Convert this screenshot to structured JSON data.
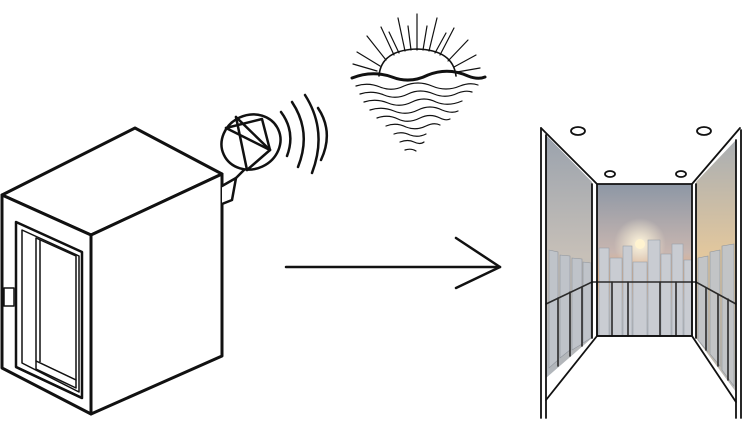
{
  "diagram": {
    "nodes": [
      {
        "id": "booth",
        "kind": "enclosure with glass door",
        "icon": "booth-icon"
      },
      {
        "id": "dish",
        "kind": "satellite dish emitting signal",
        "icon": "satellite-dish-icon"
      },
      {
        "id": "sunrise",
        "kind": "sun rising over water",
        "icon": "sunrise-icon"
      },
      {
        "id": "view",
        "kind": "glass-walled room overlooking city at sunset",
        "icon": "city-view-icon"
      }
    ],
    "edges": [
      {
        "from": "booth",
        "to": "view",
        "style": "arrow"
      }
    ],
    "colors": {
      "line": "#111111",
      "sky_top": "#8e9aa8",
      "sky_glow": "#f2b27a",
      "sun": "#fff3d0",
      "buildings": "#c9ccd2"
    }
  }
}
